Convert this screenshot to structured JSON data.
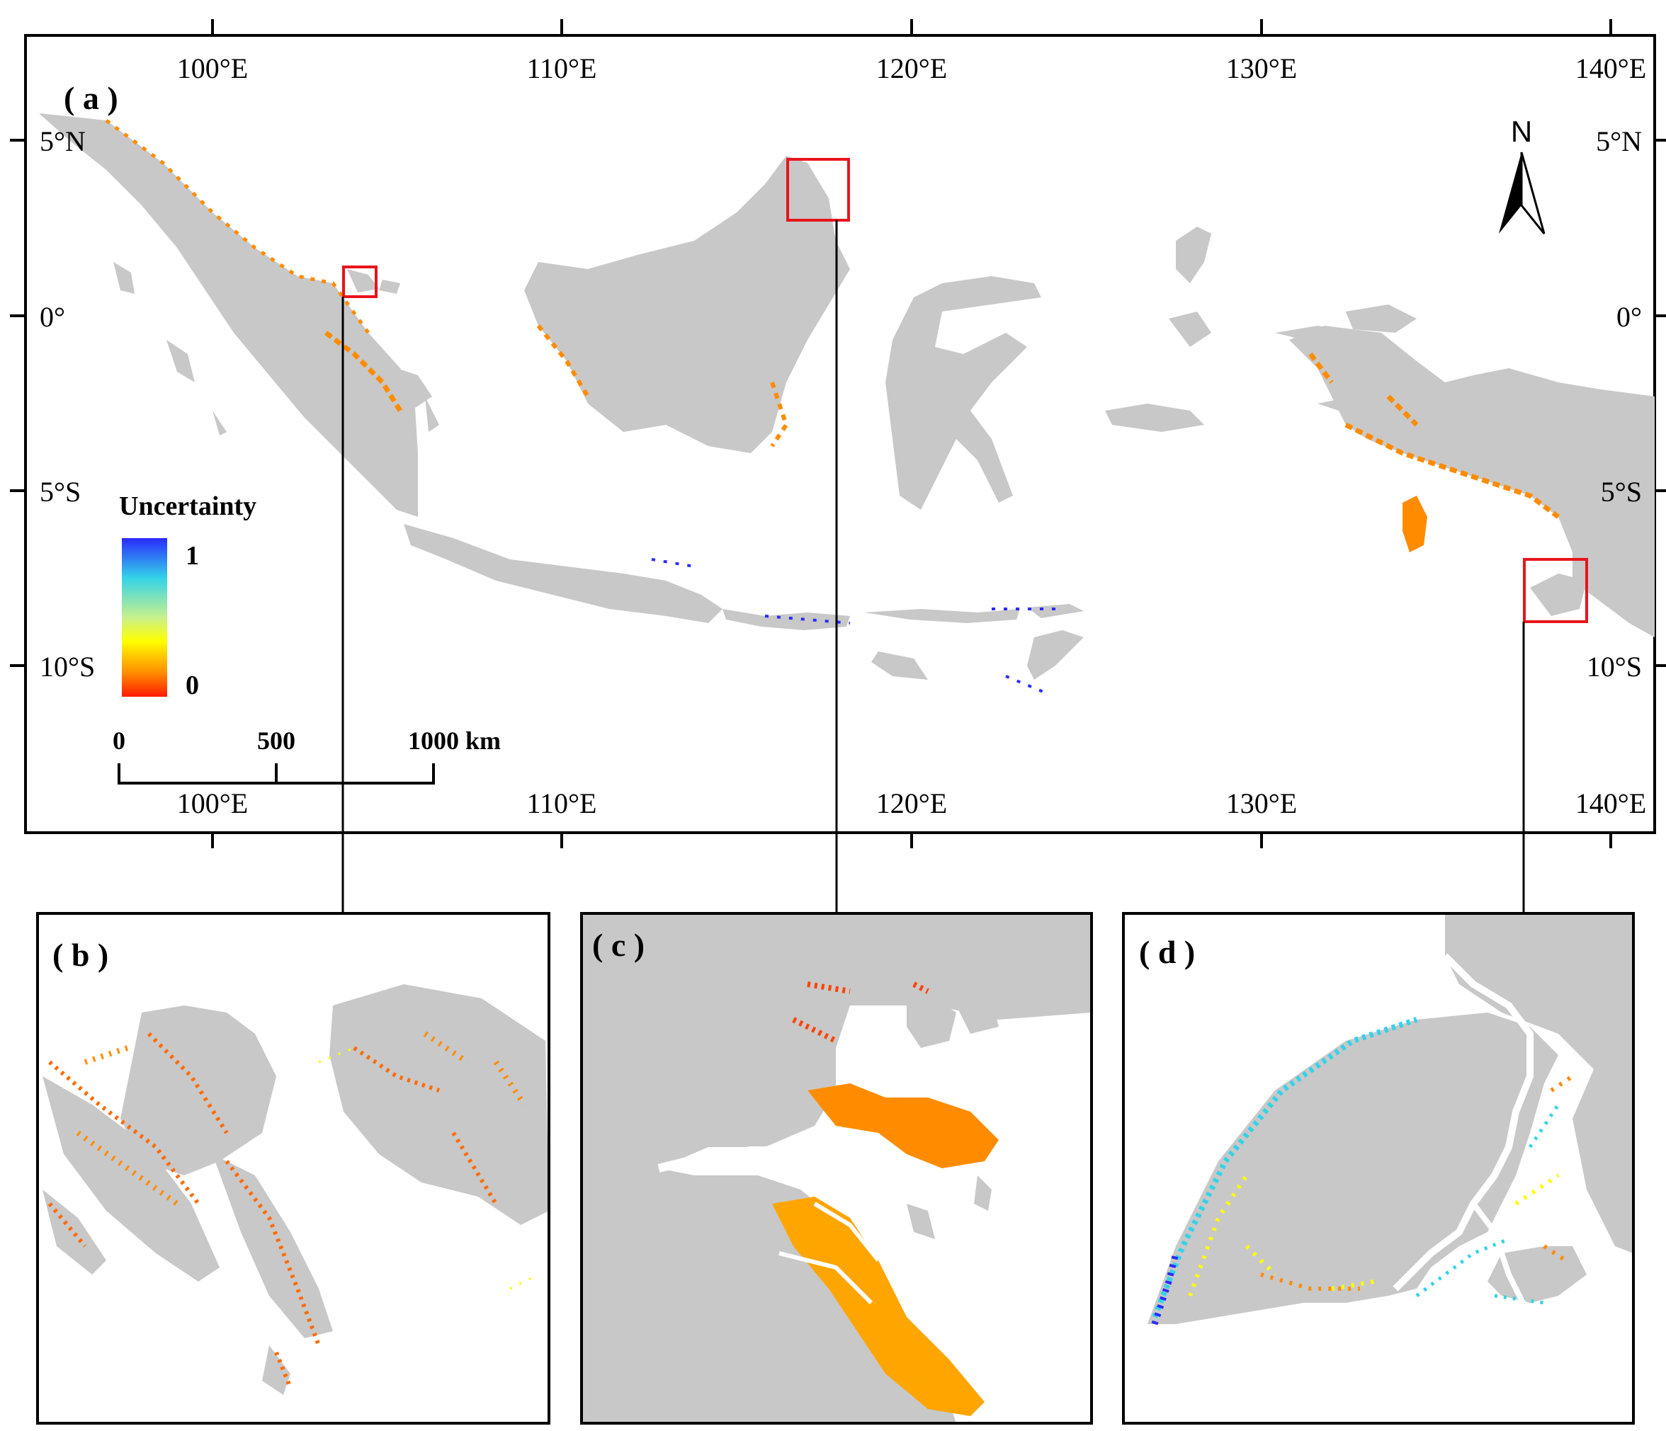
{
  "colors": {
    "land": "#c8c8c8",
    "frame": "#000000",
    "highlight": "#e8141c",
    "ramp": [
      "#2b2bff",
      "#33d3e8",
      "#c8f08c",
      "#ffff00",
      "#ff8c00",
      "#ff1a00"
    ]
  },
  "panels": {
    "a": "( a )",
    "b": "( b )",
    "c": "( c )",
    "d": "( d )"
  },
  "axes": {
    "lon_top": [
      "100°E",
      "110°E",
      "120°E",
      "130°E",
      "140°E"
    ],
    "lon_bottom": [
      "100°E",
      "110°E",
      "120°E",
      "130°E",
      "140°E"
    ],
    "lat_left": [
      "5°N",
      "0°",
      "5°S",
      "10°S"
    ],
    "lat_right": [
      "5°N",
      "0°",
      "5°S",
      "10°S"
    ]
  },
  "legend": {
    "title": "Uncertainty",
    "max_label": "1",
    "min_label": "0",
    "range": [
      0,
      1
    ]
  },
  "scalebar": {
    "labels": [
      "0",
      "500",
      "1000 km"
    ]
  },
  "north_arrow": {
    "label": "N",
    "icon": "north-arrow-icon"
  }
}
